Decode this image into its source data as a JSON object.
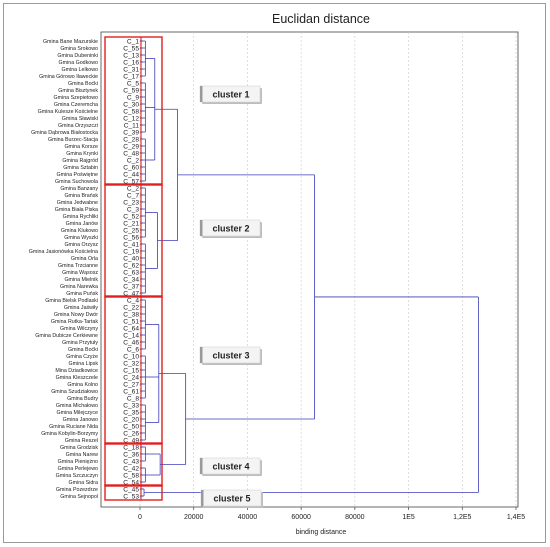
{
  "chart_data": {
    "type": "dendrogram",
    "title": "Euclidan distance",
    "xlabel": "binding distance",
    "xlim": [
      0,
      140000
    ],
    "x_ticks": [
      {
        "value": 0,
        "label": "0"
      },
      {
        "value": 20000,
        "label": "20000"
      },
      {
        "value": 40000,
        "label": "40000"
      },
      {
        "value": 60000,
        "label": "60000"
      },
      {
        "value": 80000,
        "label": "80000"
      },
      {
        "value": 100000,
        "label": "1E5"
      },
      {
        "value": 120000,
        "label": "1,2E5"
      },
      {
        "value": 140000,
        "label": "1,4E5"
      }
    ],
    "leaves": [
      {
        "name": "Gmina Bane Mazurskie",
        "code": "C_1"
      },
      {
        "name": "Gmina Srokowo",
        "code": "C_55"
      },
      {
        "name": "Gmina Dubeninki",
        "code": "C_13"
      },
      {
        "name": "Gmina Godkowo",
        "code": "C_16"
      },
      {
        "name": "Gmina Lelkowo",
        "code": "C_31"
      },
      {
        "name": "Gmina Górowo Iławeckie",
        "code": "C_17"
      },
      {
        "name": "Gmina Boćki",
        "code": "C_5"
      },
      {
        "name": "Gmina Bisztynek",
        "code": "C_59"
      },
      {
        "name": "Gmina Szepietowo",
        "code": "C_9"
      },
      {
        "name": "Gmina Czeremcha",
        "code": "C_30"
      },
      {
        "name": "Gmina Kulesze Kościelne",
        "code": "C_58"
      },
      {
        "name": "Gmina Sławiski",
        "code": "C_12"
      },
      {
        "name": "Gmina Orzyszczi",
        "code": "C_11"
      },
      {
        "name": "Gmina Dąbrowa Białostocka",
        "code": "C_39"
      },
      {
        "name": "Gmina Burzec-Stacja",
        "code": "C_28"
      },
      {
        "name": "Gmina Korsze",
        "code": "C_29"
      },
      {
        "name": "Gmina Krynki",
        "code": "C_48"
      },
      {
        "name": "Gmina Rajgród",
        "code": "C_2"
      },
      {
        "name": "Gmina Sztabin",
        "code": "C_60"
      },
      {
        "name": "Gmina Poświętne",
        "code": "C_44"
      },
      {
        "name": "Gmina Suchowola",
        "code": "C_57"
      },
      {
        "name": "Gmina Banzany",
        "code": "C_2"
      },
      {
        "name": "Gmina Brańsk",
        "code": "C_7"
      },
      {
        "name": "Gmina Jedwabne",
        "code": "C_23"
      },
      {
        "name": "Gmina Biała Piska",
        "code": "C_3"
      },
      {
        "name": "Gmina Rychliki",
        "code": "C_52"
      },
      {
        "name": "Gmina Janów",
        "code": "C_21"
      },
      {
        "name": "Gmina Klukowo",
        "code": "C_25"
      },
      {
        "name": "Gmina Wyszki",
        "code": "C_56"
      },
      {
        "name": "Gmina Orzysz",
        "code": "C_41"
      },
      {
        "name": "Gmina Jasionówka Kościelna",
        "code": "C_19"
      },
      {
        "name": "Gmina Orla",
        "code": "C_40"
      },
      {
        "name": "Gmina Trzcianne",
        "code": "C_62"
      },
      {
        "name": "Gmina Wąsosz",
        "code": "C_63"
      },
      {
        "name": "Gmina Mielnik",
        "code": "C_34"
      },
      {
        "name": "Gmina Narewka",
        "code": "C_37"
      },
      {
        "name": "Gmina Puńsk",
        "code": "C_47"
      },
      {
        "name": "Gmina Bielsk Podlaski",
        "code": "C_4"
      },
      {
        "name": "Gmina Jaświły",
        "code": "C_22"
      },
      {
        "name": "Gmina Nowy Dwór",
        "code": "C_38"
      },
      {
        "name": "Gmina Rutka-Tartak",
        "code": "C_51"
      },
      {
        "name": "Gmina Wilczyny",
        "code": "C_64"
      },
      {
        "name": "Gmina Dubicze Cerkiewne",
        "code": "C_14"
      },
      {
        "name": "Gmina Przytuły",
        "code": "C_46"
      },
      {
        "name": "Gmina Boćki",
        "code": "C_6"
      },
      {
        "name": "Gmina Czyże",
        "code": "C_10"
      },
      {
        "name": "Gmina Lipsk",
        "code": "C_32"
      },
      {
        "name": "Mina Dziadkowice",
        "code": "C_15"
      },
      {
        "name": "Gmina Kleszczele",
        "code": "C_24"
      },
      {
        "name": "Gmina Kolno",
        "code": "C_27"
      },
      {
        "name": "Gmina Szudziałowo",
        "code": "C_61"
      },
      {
        "name": "Gmina Budry",
        "code": "C_8"
      },
      {
        "name": "Gmina Michałowo",
        "code": "C_33"
      },
      {
        "name": "Gmina Milejczyce",
        "code": "C_35"
      },
      {
        "name": "Gmina Janowo",
        "code": "C_20"
      },
      {
        "name": "Gmina Ruciane Nida",
        "code": "C_50"
      },
      {
        "name": "Gmina Kobylin-Borzymy",
        "code": "C_26"
      },
      {
        "name": "Gmina Reszel",
        "code": "C_49"
      },
      {
        "name": "Gmina Grodzisk",
        "code": "C_18"
      },
      {
        "name": "Gmina Narew",
        "code": "C_36"
      },
      {
        "name": "Gmina Pieniężno",
        "code": "C_43"
      },
      {
        "name": "Gmina Perlejewo",
        "code": "C_42"
      },
      {
        "name": "Gmina Szczuczyn",
        "code": "C_58"
      },
      {
        "name": "Gmina Sidra",
        "code": "C_54"
      },
      {
        "name": "Gmina Pozezdrze",
        "code": "C_45"
      },
      {
        "name": "Gmina Sejnopol",
        "code": "C_53"
      }
    ],
    "clusters": [
      {
        "label": "cluster 1",
        "first": 0,
        "last": 20,
        "height": 500,
        "links": [
          {
            "first": 0,
            "last": 5,
            "h": 3000
          },
          {
            "first": 6,
            "last": 13,
            "h": 4000
          },
          {
            "first": 14,
            "last": 20,
            "h": 2600
          }
        ]
      },
      {
        "label": "cluster 2",
        "first": 21,
        "last": 36,
        "height": 2500,
        "links": [
          {
            "first": 21,
            "last": 28,
            "h": 5000
          },
          {
            "first": 29,
            "last": 36,
            "h": 3000
          }
        ]
      },
      {
        "label": "cluster 3",
        "first": 37,
        "last": 57,
        "height": 2800,
        "links": [
          {
            "first": 37,
            "last": 44,
            "h": 4600
          },
          {
            "first": 45,
            "last": 51,
            "h": 5500
          },
          {
            "first": 52,
            "last": 57,
            "h": 5000
          }
        ]
      },
      {
        "label": "cluster 4",
        "first": 58,
        "last": 63,
        "height": 6500,
        "links": [
          {
            "first": 58,
            "last": 60,
            "h": 6000
          },
          {
            "first": 61,
            "last": 63,
            "h": 4000
          }
        ]
      },
      {
        "label": "cluster 5",
        "first": 64,
        "last": 65,
        "height": 2200,
        "links": []
      }
    ],
    "merges": [
      {
        "a": "cluster 1",
        "b": "cluster 2",
        "height": 14000
      },
      {
        "a": "cluster 3",
        "b": "cluster 4",
        "height": 17000
      },
      {
        "a": "cluster 1+2",
        "b": "cluster 3+4",
        "height": 65000
      },
      {
        "a": "all",
        "b": "cluster 5",
        "height": 126000
      }
    ],
    "line_color": "#3c3cb8",
    "highlight_color": "#e02020"
  }
}
